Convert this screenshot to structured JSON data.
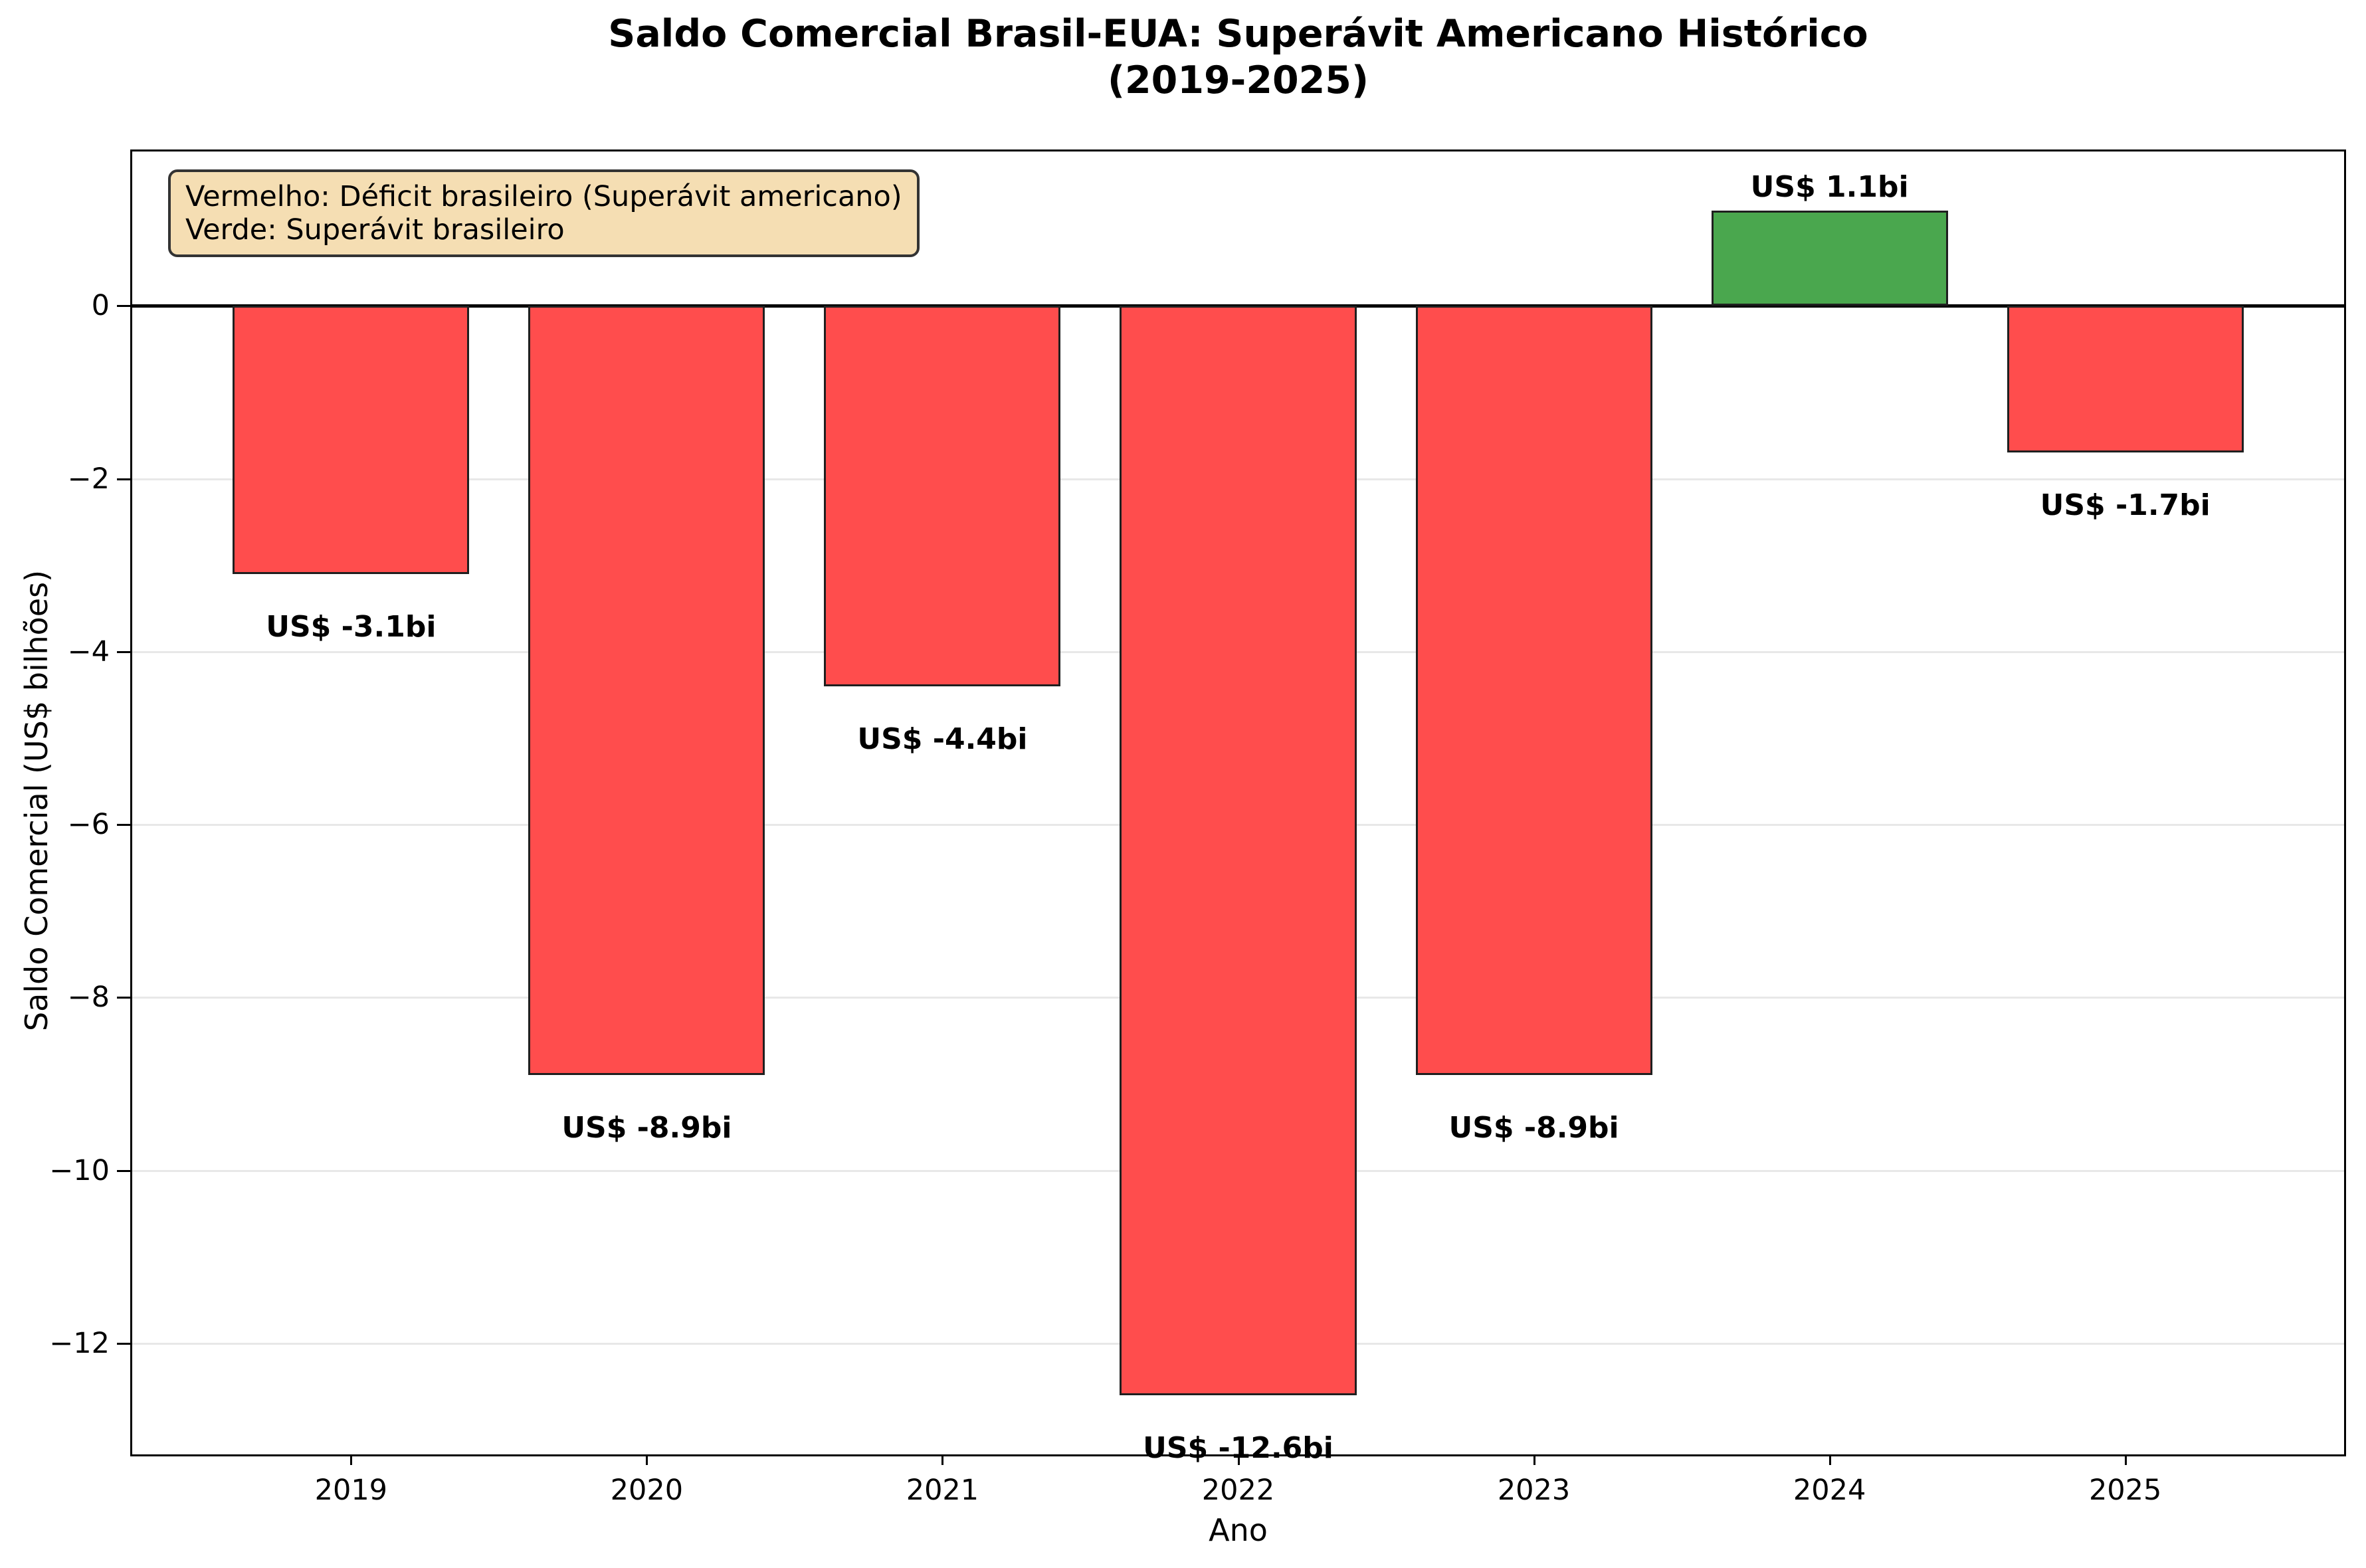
{
  "title": {
    "line1": "Saldo Comercial Brasil-EUA: Superávit Americano Histórico",
    "line2": "(2019-2025)"
  },
  "legend": {
    "line1": "Vermelho: Déficit brasileiro (Superávit americano)",
    "line2": "Verde: Superávit brasileiro"
  },
  "chart_data": {
    "type": "bar",
    "title": "Saldo Comercial Brasil-EUA: Superávit Americano Histórico (2019-2025)",
    "xlabel": "Ano",
    "ylabel": "Saldo Comercial (US$ bilhões)",
    "categories": [
      "2019",
      "2020",
      "2021",
      "2022",
      "2023",
      "2024",
      "2025"
    ],
    "values": [
      -3.1,
      -8.9,
      -4.4,
      -12.6,
      -8.9,
      1.1,
      -1.7
    ],
    "bar_labels": [
      "US$ -3.1bi",
      "US$ -8.9bi",
      "US$ -4.4bi",
      "US$ -12.6bi",
      "US$ -8.9bi",
      "US$ 1.1bi",
      "US$ -1.7bi"
    ],
    "bar_colors": [
      "#FF4D4D",
      "#FF4D4D",
      "#FF4D4D",
      "#FF4D4D",
      "#FF4D4D",
      "#4AA74E",
      "#FF4D4D"
    ],
    "yticks": [
      0,
      -2,
      -4,
      -6,
      -8,
      -10,
      -12
    ],
    "ytick_labels": [
      "0",
      "−2",
      "−4",
      "−6",
      "−8",
      "−10",
      "−12"
    ],
    "ylim": [
      -13.285,
      1.785
    ],
    "grid": "horizontal",
    "legend_position": "upper-left",
    "colors": {
      "deficit_red": "#FF4D4D",
      "surplus_green": "#4AA74E",
      "bar_edge": "#1f1f1f",
      "legend_bg": "#F5DEB3",
      "legend_border": "#333333",
      "gridline": "#E8E8E8",
      "zero_line": "#000000"
    }
  }
}
